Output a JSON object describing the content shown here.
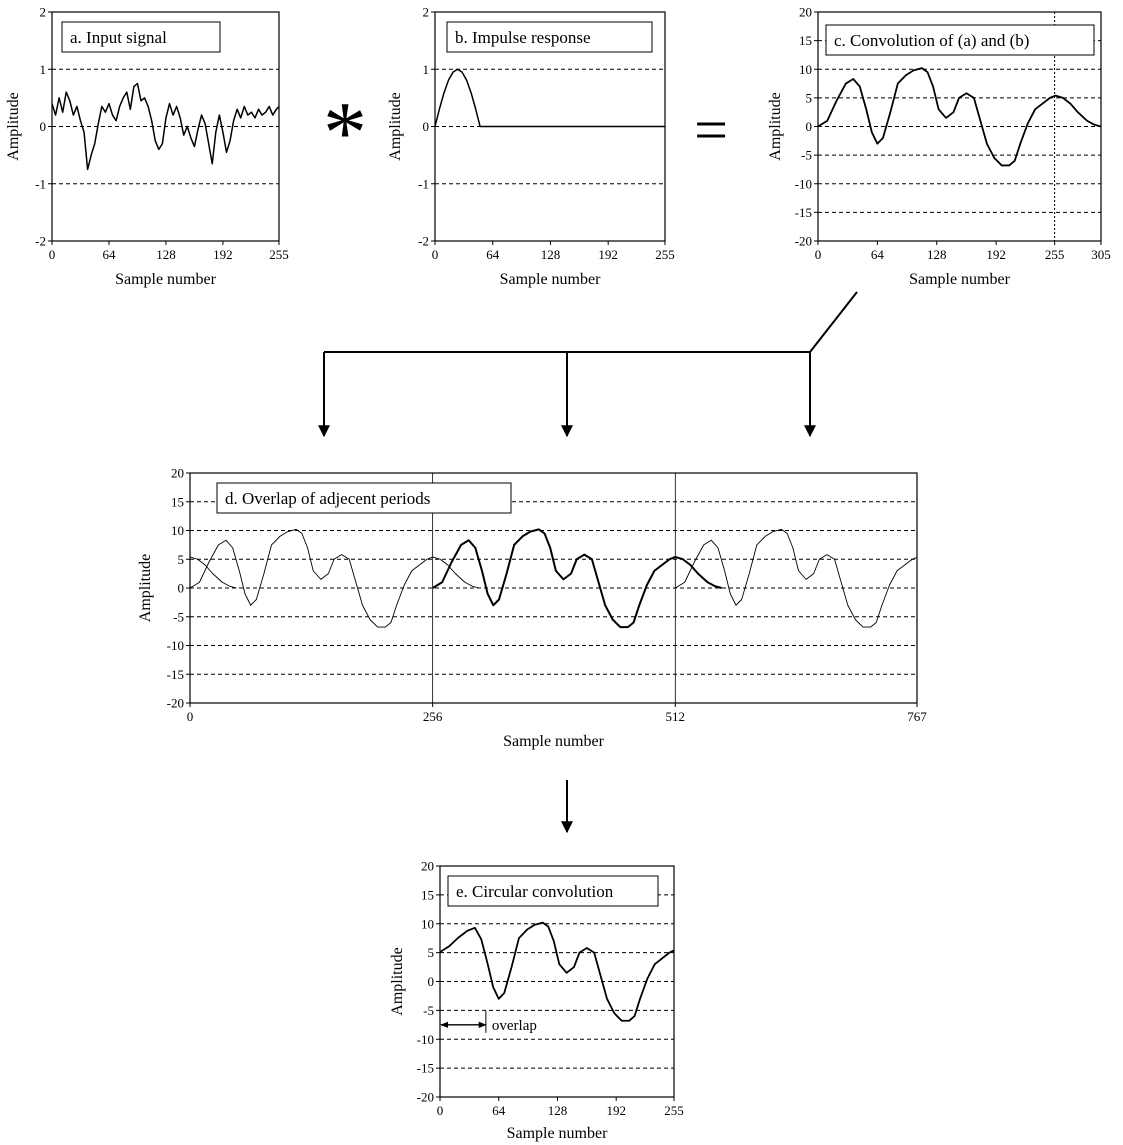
{
  "operators": {
    "convolve": "*",
    "equals": "="
  },
  "colors": {
    "line": "#000000",
    "background": "#ffffff",
    "grid": "#000000"
  },
  "chart_data": [
    {
      "id": "a",
      "type": "line",
      "title": "a.  Input signal",
      "xlabel": "Sample number",
      "ylabel": "Amplitude",
      "xlim": [
        0,
        255
      ],
      "ylim": [
        -2,
        2
      ],
      "xticks": [
        0,
        64,
        128,
        192,
        255
      ],
      "yticks": [
        -2,
        -1,
        0,
        1,
        2
      ],
      "hgrid_dashed": [
        -1,
        0,
        1
      ],
      "vgrid": [],
      "series": [
        {
          "x": [
            0,
            4,
            8,
            12,
            16,
            20,
            24,
            28,
            32,
            36,
            40,
            44,
            48,
            52,
            56,
            60,
            64,
            68,
            72,
            76,
            80,
            84,
            88,
            92,
            96,
            100,
            104,
            108,
            112,
            116,
            120,
            124,
            128,
            132,
            136,
            140,
            144,
            148,
            152,
            156,
            160,
            164,
            168,
            172,
            176,
            180,
            184,
            188,
            192,
            196,
            200,
            204,
            208,
            212,
            216,
            220,
            224,
            228,
            232,
            236,
            240,
            244,
            248,
            252,
            255
          ],
          "y": [
            0.4,
            0.2,
            0.5,
            0.25,
            0.6,
            0.45,
            0.2,
            0.35,
            0.1,
            -0.1,
            -0.75,
            -0.5,
            -0.3,
            0.05,
            0.35,
            0.25,
            0.4,
            0.2,
            0.1,
            0.35,
            0.5,
            0.6,
            0.3,
            0.7,
            0.75,
            0.45,
            0.5,
            0.35,
            0.1,
            -0.25,
            -0.4,
            -0.3,
            0.15,
            0.4,
            0.2,
            0.35,
            0.15,
            -0.15,
            0.0,
            -0.2,
            -0.35,
            -0.05,
            0.2,
            0.05,
            -0.3,
            -0.65,
            -0.1,
            0.2,
            -0.1,
            -0.45,
            -0.25,
            0.1,
            0.3,
            0.15,
            0.35,
            0.2,
            0.25,
            0.15,
            0.3,
            0.2,
            0.25,
            0.35,
            0.2,
            0.3,
            0.35
          ],
          "width": 1.5
        }
      ]
    },
    {
      "id": "b",
      "type": "line",
      "title": "b.  Impulse response",
      "xlabel": "Sample number",
      "ylabel": "Amplitude",
      "xlim": [
        0,
        255
      ],
      "ylim": [
        -2,
        2
      ],
      "xticks": [
        0,
        64,
        128,
        192,
        255
      ],
      "yticks": [
        -2,
        -1,
        0,
        1,
        2
      ],
      "hgrid_dashed": [
        -1,
        0,
        1
      ],
      "vgrid": [],
      "series": [
        {
          "x": [
            0,
            5,
            10,
            15,
            20,
            25,
            30,
            35,
            40,
            45,
            50,
            255
          ],
          "y": [
            0,
            0.31,
            0.59,
            0.81,
            0.95,
            1.0,
            0.95,
            0.81,
            0.59,
            0.31,
            0,
            0
          ],
          "width": 1.5
        }
      ]
    },
    {
      "id": "c",
      "type": "line",
      "title": "c.  Convolution of (a) and (b)",
      "xlabel": "Sample number",
      "ylabel": "Amplitude",
      "xlim": [
        0,
        305
      ],
      "ylim": [
        -20,
        20
      ],
      "xticks": [
        0,
        64,
        128,
        192,
        255,
        305
      ],
      "yticks": [
        -20,
        -15,
        -10,
        -5,
        0,
        5,
        10,
        15,
        20
      ],
      "hgrid_dashed": [
        -15,
        -10,
        -5,
        0,
        5,
        10,
        15
      ],
      "vgrid_dotted": [
        255
      ],
      "series": [
        {
          "x": [
            0,
            10,
            20,
            30,
            38,
            45,
            52,
            58,
            64,
            70,
            78,
            86,
            95,
            103,
            112,
            118,
            124,
            130,
            138,
            146,
            152,
            160,
            168,
            175,
            182,
            190,
            198,
            206,
            212,
            218,
            226,
            234,
            242,
            250,
            256,
            264,
            272,
            280,
            290,
            298,
            305
          ],
          "y": [
            0,
            1,
            4.5,
            7.5,
            8.3,
            7,
            3,
            -1,
            -3,
            -2,
            2.5,
            7.5,
            9,
            9.8,
            10.2,
            9.5,
            7,
            3,
            1.5,
            2.5,
            5,
            5.8,
            5,
            1,
            -3,
            -5.5,
            -6.8,
            -6.8,
            -6,
            -3,
            0.5,
            3,
            4,
            5,
            5.4,
            5,
            4,
            2.5,
            1,
            0.3,
            0
          ],
          "width": 1.8
        }
      ]
    },
    {
      "id": "d",
      "type": "line",
      "title": "d.  Overlap of adjecent periods",
      "xlabel": "Sample number",
      "ylabel": "Amplitude",
      "xlim": [
        0,
        767
      ],
      "ylim": [
        -20,
        20
      ],
      "xticks": [
        0,
        256,
        512,
        767
      ],
      "yticks": [
        -20,
        -15,
        -10,
        -5,
        0,
        5,
        10,
        15,
        20
      ],
      "hgrid_dashed": [
        -15,
        -10,
        -5,
        0,
        5,
        10,
        15
      ],
      "vgrid_solid": [
        256,
        512
      ],
      "base": {
        "x": [
          0,
          10,
          20,
          30,
          38,
          45,
          52,
          58,
          64,
          70,
          78,
          86,
          95,
          103,
          112,
          118,
          124,
          130,
          138,
          146,
          152,
          160,
          168,
          175,
          182,
          190,
          198,
          206,
          212,
          218,
          226,
          234,
          242,
          250,
          256,
          264,
          272,
          280,
          290,
          298,
          305
        ],
        "y": [
          0,
          1,
          4.5,
          7.5,
          8.3,
          7,
          3,
          -1,
          -3,
          -2,
          2.5,
          7.5,
          9,
          9.8,
          10.2,
          9.5,
          7,
          3,
          1.5,
          2.5,
          5,
          5.8,
          5,
          1,
          -3,
          -5.5,
          -6.8,
          -6.8,
          -6,
          -3,
          0.5,
          3,
          4,
          5,
          5.4,
          5,
          4,
          2.5,
          1,
          0.3,
          0
        ]
      },
      "periods": [
        {
          "offset": -256,
          "width": 0.9
        },
        {
          "offset": 0,
          "width": 0.9
        },
        {
          "offset": 256,
          "width": 2.0
        },
        {
          "offset": 512,
          "width": 0.9
        }
      ]
    },
    {
      "id": "e",
      "type": "line",
      "title": "e.  Circular convolution",
      "xlabel": "Sample number",
      "ylabel": "Amplitude",
      "xlim": [
        0,
        255
      ],
      "ylim": [
        -20,
        20
      ],
      "xticks": [
        0,
        64,
        128,
        192,
        255
      ],
      "yticks": [
        -20,
        -15,
        -10,
        -5,
        0,
        5,
        10,
        15,
        20
      ],
      "hgrid_dashed": [
        -15,
        -10,
        -5,
        0,
        5,
        10,
        15
      ],
      "vgrid": [],
      "series": [
        {
          "x": [
            0,
            10,
            20,
            30,
            38,
            45,
            52,
            58,
            64,
            70,
            78,
            86,
            95,
            103,
            112,
            118,
            124,
            130,
            138,
            146,
            152,
            160,
            168,
            175,
            182,
            190,
            198,
            206,
            212,
            218,
            226,
            234,
            242,
            250,
            255
          ],
          "y": [
            5.1,
            6.1,
            7.6,
            8.8,
            9.3,
            7.3,
            3,
            -1,
            -3,
            -2,
            2.5,
            7.5,
            9,
            9.8,
            10.2,
            9.5,
            7,
            3,
            1.5,
            2.5,
            5,
            5.8,
            5,
            1,
            -3,
            -5.5,
            -6.8,
            -6.8,
            -6,
            -3,
            0.5,
            3,
            4,
            5,
            5.4
          ],
          "width": 1.8
        }
      ],
      "annotation": {
        "label": "overlap",
        "x_start": 0,
        "x_end": 50,
        "y": -7.5
      }
    }
  ]
}
